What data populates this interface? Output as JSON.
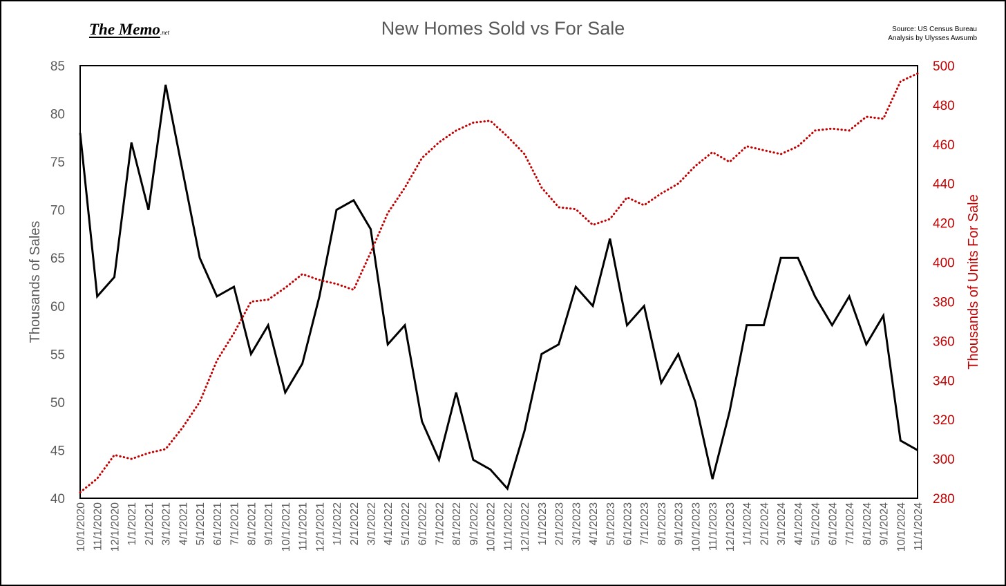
{
  "header": {
    "logo_main": "The Memo",
    "logo_suffix": ".net",
    "source_line1": "Source: US Census Bureau",
    "source_line2": "Analysis by Ulysses Awsumb"
  },
  "chart_data": {
    "type": "line",
    "title": "New Homes Sold vs For Sale",
    "ylabel": "Thousands of Sales",
    "y2label": "Thousands of Units For Sale",
    "xlabel": "",
    "ylim": [
      40,
      85
    ],
    "y2lim": [
      280,
      500
    ],
    "yticks": [
      40,
      45,
      50,
      55,
      60,
      65,
      70,
      75,
      80,
      85
    ],
    "y2ticks": [
      280,
      300,
      320,
      340,
      360,
      380,
      400,
      420,
      440,
      460,
      480,
      500
    ],
    "grid": false,
    "legend": "none",
    "categories": [
      "10/1/2020",
      "11/1/2020",
      "12/1/2020",
      "1/1/2021",
      "2/1/2021",
      "3/1/2021",
      "4/1/2021",
      "5/1/2021",
      "6/1/2021",
      "7/1/2021",
      "8/1/2021",
      "9/1/2021",
      "10/1/2021",
      "11/1/2021",
      "12/1/2021",
      "1/1/2022",
      "2/1/2022",
      "3/1/2022",
      "4/1/2022",
      "5/1/2022",
      "6/1/2022",
      "7/1/2022",
      "8/1/2022",
      "9/1/2022",
      "10/1/2022",
      "11/1/2022",
      "12/1/2022",
      "1/1/2023",
      "2/1/2023",
      "3/1/2023",
      "4/1/2023",
      "5/1/2023",
      "6/1/2023",
      "7/1/2023",
      "8/1/2023",
      "9/1/2023",
      "10/1/2023",
      "11/1/2023",
      "12/1/2023",
      "1/1/2024",
      "2/1/2024",
      "3/1/2024",
      "4/1/2024",
      "5/1/2024",
      "6/1/2024",
      "7/1/2024",
      "8/1/2024",
      "9/1/2024",
      "10/1/2024",
      "11/1/2024"
    ],
    "series": [
      {
        "axis": "left",
        "color": "#000000",
        "style": "solid",
        "values": [
          78,
          61,
          63,
          77,
          70,
          83,
          74,
          65,
          61,
          62,
          55,
          58,
          51,
          54,
          61,
          70,
          71,
          68,
          56,
          58,
          48,
          44,
          51,
          44,
          43,
          41,
          47,
          55,
          56,
          62,
          60,
          67,
          58,
          60,
          52,
          55,
          50,
          42,
          49,
          58,
          58,
          65,
          65,
          61,
          58,
          61,
          56,
          59,
          46,
          45
        ]
      },
      {
        "axis": "right",
        "color": "#c00000",
        "style": "dotted",
        "values": [
          283,
          290,
          302,
          300,
          303,
          305,
          316,
          329,
          350,
          364,
          380,
          381,
          387,
          394,
          391,
          389,
          386,
          405,
          425,
          438,
          453,
          461,
          467,
          471,
          472,
          464,
          455,
          438,
          428,
          427,
          419,
          422,
          433,
          429,
          435,
          440,
          449,
          456,
          451,
          459,
          457,
          455,
          459,
          467,
          468,
          467,
          474,
          473,
          492,
          496
        ]
      }
    ]
  }
}
